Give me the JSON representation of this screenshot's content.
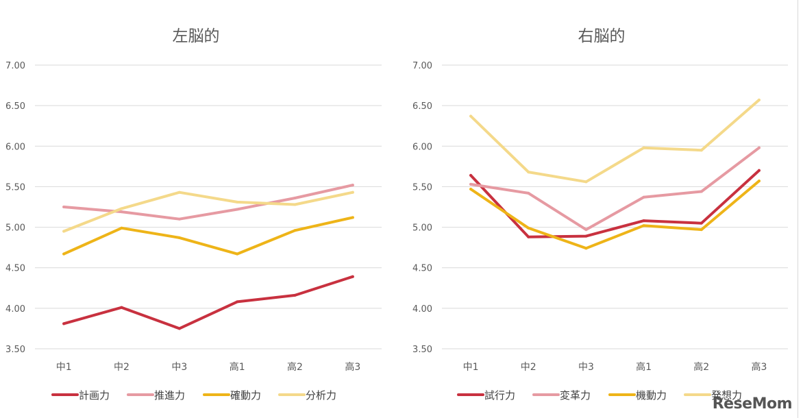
{
  "chart_data": [
    {
      "type": "line",
      "title": "左脳的",
      "categories": [
        "中1",
        "中2",
        "中3",
        "高1",
        "高2",
        "高3"
      ],
      "ylim": [
        3.5,
        7.0
      ],
      "yticks": [
        "3.50",
        "4.00",
        "4.50",
        "5.00",
        "5.50",
        "6.00",
        "6.50",
        "7.00"
      ],
      "grid": true,
      "legend": "bottom",
      "series": [
        {
          "name": "計画力",
          "color": "#c8313f",
          "values": [
            3.81,
            4.01,
            3.75,
            4.08,
            4.16,
            4.39
          ]
        },
        {
          "name": "推進力",
          "color": "#e69aa2",
          "values": [
            5.25,
            5.19,
            5.1,
            5.22,
            5.36,
            5.52
          ]
        },
        {
          "name": "確動力",
          "color": "#eeb418",
          "values": [
            4.67,
            4.99,
            4.87,
            4.67,
            4.96,
            5.12
          ]
        },
        {
          "name": "分析力",
          "color": "#f4d98a",
          "values": [
            4.95,
            5.23,
            5.43,
            5.31,
            5.28,
            5.43
          ]
        }
      ]
    },
    {
      "type": "line",
      "title": "右脳的",
      "categories": [
        "中1",
        "中2",
        "中3",
        "高1",
        "高2",
        "高3"
      ],
      "ylim": [
        3.5,
        7.0
      ],
      "yticks": [
        "3.50",
        "4.00",
        "4.50",
        "5.00",
        "5.50",
        "6.00",
        "6.50",
        "7.00"
      ],
      "grid": true,
      "legend": "bottom",
      "series": [
        {
          "name": "試行力",
          "color": "#c8313f",
          "values": [
            5.64,
            4.88,
            4.89,
            5.08,
            5.05,
            5.7
          ]
        },
        {
          "name": "変革力",
          "color": "#e69aa2",
          "values": [
            5.53,
            5.42,
            4.97,
            5.37,
            5.44,
            5.98
          ]
        },
        {
          "name": "機動力",
          "color": "#eeb418",
          "values": [
            5.47,
            4.99,
            4.74,
            5.02,
            4.97,
            5.57
          ]
        },
        {
          "name": "発想力",
          "color": "#f4d98a",
          "values": [
            6.37,
            5.68,
            5.56,
            5.98,
            5.95,
            6.57
          ]
        }
      ]
    }
  ],
  "watermark": "ReseMom"
}
